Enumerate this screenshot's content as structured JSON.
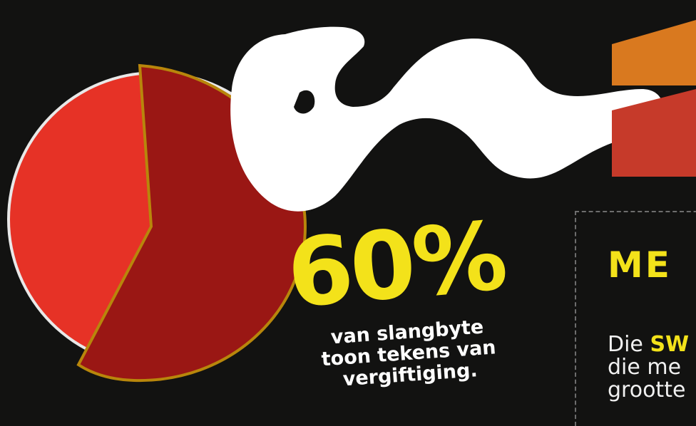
{
  "stat": {
    "percent_label": "60%",
    "percent_value": 60,
    "caption_lines": [
      "van slangbyte",
      "toon tekens van",
      "vergiftiging."
    ]
  },
  "info_panel": {
    "title": "ME",
    "body_line1_prefix": "Die ",
    "body_line1_highlight": "SW",
    "body_line2": "die me",
    "body_line3": "grootte"
  },
  "colors": {
    "background": "#121211",
    "accent_yellow": "#f3e21a",
    "pie_light": "#e63226",
    "pie_dark": "#9a1714",
    "stripe_orange": "#d9791f",
    "stripe_red": "#c63a2a"
  },
  "icons": [
    "snake-illustration",
    "pie-chart"
  ]
}
